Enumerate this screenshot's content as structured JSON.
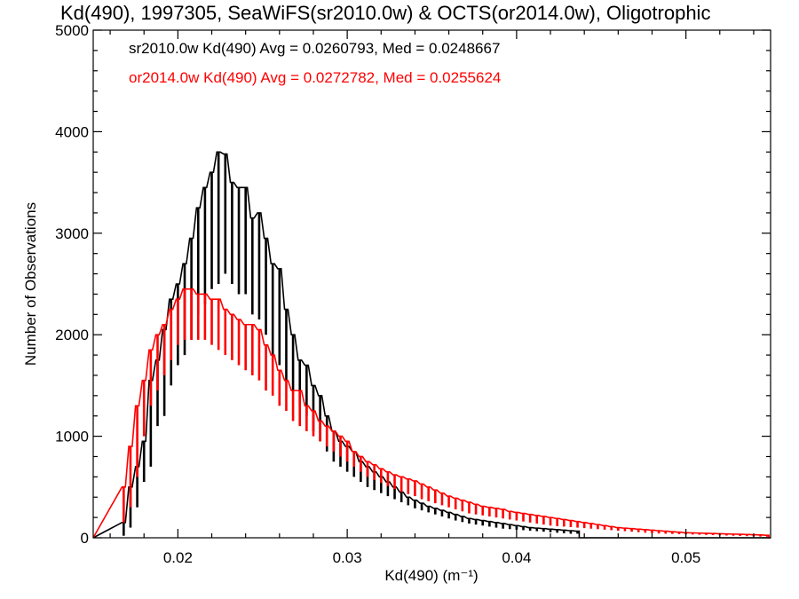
{
  "chart_data": {
    "type": "line",
    "title": "Kd(490), 1997305, SeaWiFS(sr2010.0w) & OCTS(or2014.0w), Oligotrophic",
    "xlabel": "Kd(490) (m⁻¹)",
    "ylabel": "Number of Observations",
    "xlim": [
      0.015,
      0.055
    ],
    "ylim": [
      0,
      5000
    ],
    "x_ticks": [
      0.02,
      0.03,
      0.04,
      0.05
    ],
    "x_tick_labels": [
      "0.02",
      "0.03",
      "0.04",
      "0.05"
    ],
    "y_ticks": [
      0,
      1000,
      2000,
      3000,
      4000,
      5000
    ],
    "y_tick_labels": [
      "0",
      "1000",
      "2000",
      "3000",
      "4000",
      "5000"
    ],
    "annotations": [
      "sr2010.0w Kd(490) Avg = 0.0260793, Med = 0.0248667",
      "or2014.0w Kd(490) Avg = 0.0272782, Med = 0.0255624"
    ],
    "grid": false,
    "bin_width": 0.0002,
    "series": [
      {
        "color": "#000000",
        "x": [
          0.0168,
          0.0172,
          0.0176,
          0.018,
          0.0184,
          0.0188,
          0.0192,
          0.0196,
          0.02,
          0.0204,
          0.0208,
          0.0212,
          0.0216,
          0.022,
          0.0224,
          0.0228,
          0.0232,
          0.0236,
          0.024,
          0.0244,
          0.0248,
          0.0252,
          0.0256,
          0.026,
          0.0264,
          0.0268,
          0.0272,
          0.0276,
          0.028,
          0.0284,
          0.0288,
          0.0292,
          0.0296,
          0.03,
          0.0304,
          0.0308,
          0.0312,
          0.0316,
          0.032,
          0.0324,
          0.0328,
          0.0332,
          0.0336,
          0.034,
          0.0344,
          0.0348,
          0.0352,
          0.0356,
          0.036,
          0.0364,
          0.0368,
          0.0372,
          0.0376,
          0.038,
          0.0384,
          0.0388,
          0.0392,
          0.0396,
          0.04,
          0.0404,
          0.0408,
          0.0412,
          0.0416,
          0.042,
          0.0424,
          0.0428,
          0.0432,
          0.0436
        ],
        "peaks": [
          150,
          500,
          700,
          950,
          1550,
          1750,
          2050,
          2350,
          2500,
          2700,
          2950,
          3250,
          3450,
          3600,
          3800,
          3780,
          3500,
          3450,
          3450,
          3150,
          3200,
          2950,
          2700,
          2650,
          2250,
          2000,
          1750,
          1700,
          1500,
          1400,
          1200,
          1050,
          950,
          900,
          850,
          750,
          700,
          650,
          600,
          550,
          500,
          450,
          400,
          370,
          340,
          310,
          290,
          270,
          250,
          230,
          210,
          190,
          180,
          170,
          160,
          150,
          140,
          130,
          120,
          110,
          100,
          95,
          90,
          85,
          80,
          75,
          70,
          65
        ],
        "troughs": [
          20,
          100,
          300,
          550,
          700,
          1100,
          1200,
          1500,
          1700,
          1800,
          1950,
          2200,
          2300,
          2450,
          2500,
          2600,
          2500,
          2400,
          2400,
          2200,
          2150,
          2000,
          1800,
          1700,
          1550,
          1450,
          1300,
          1200,
          1050,
          950,
          850,
          750,
          700,
          650,
          600,
          550,
          500,
          470,
          440,
          410,
          380,
          350,
          320,
          290,
          270,
          250,
          230,
          210,
          190,
          170,
          155,
          140,
          130,
          120,
          110,
          100,
          90,
          85,
          80,
          75,
          70,
          65,
          60,
          55,
          50,
          45,
          40,
          40
        ]
      },
      {
        "color": "#ff0000",
        "x": [
          0.0168,
          0.0172,
          0.0176,
          0.018,
          0.0184,
          0.0188,
          0.0192,
          0.0196,
          0.02,
          0.0204,
          0.0208,
          0.0212,
          0.0216,
          0.022,
          0.0224,
          0.0228,
          0.0232,
          0.0236,
          0.024,
          0.0244,
          0.0248,
          0.0252,
          0.0256,
          0.026,
          0.0264,
          0.0268,
          0.0272,
          0.0276,
          0.028,
          0.0284,
          0.0288,
          0.0292,
          0.0296,
          0.03,
          0.0304,
          0.0308,
          0.0312,
          0.0316,
          0.032,
          0.0324,
          0.0328,
          0.0332,
          0.0336,
          0.034,
          0.0344,
          0.0348,
          0.0352,
          0.0356,
          0.036,
          0.0364,
          0.0368,
          0.0372,
          0.0376,
          0.038,
          0.0384,
          0.0388,
          0.0392,
          0.0396,
          0.04,
          0.0404,
          0.0408,
          0.0412,
          0.0416,
          0.042,
          0.0424,
          0.0428,
          0.0432,
          0.0436,
          0.044,
          0.0444,
          0.0448,
          0.0452,
          0.0456,
          0.046,
          0.0464,
          0.0468,
          0.0472,
          0.0476,
          0.048,
          0.0484,
          0.0488,
          0.0492,
          0.0496,
          0.05,
          0.0504,
          0.0508,
          0.0512,
          0.0516,
          0.052,
          0.0524,
          0.0528,
          0.0532,
          0.0536,
          0.054,
          0.0544,
          0.0548
        ],
        "peaks": [
          500,
          900,
          1300,
          1550,
          1850,
          2000,
          2100,
          2250,
          2350,
          2450,
          2450,
          2400,
          2400,
          2350,
          2350,
          2250,
          2200,
          2150,
          2100,
          2100,
          2050,
          1900,
          1800,
          1650,
          1550,
          1450,
          1450,
          1300,
          1250,
          1150,
          1100,
          1050,
          1000,
          950,
          850,
          800,
          750,
          720,
          680,
          650,
          620,
          600,
          580,
          560,
          530,
          500,
          470,
          440,
          410,
          390,
          370,
          350,
          330,
          310,
          300,
          290,
          280,
          260,
          250,
          240,
          230,
          220,
          210,
          200,
          190,
          180,
          170,
          160,
          150,
          140,
          130,
          120,
          110,
          100,
          95,
          90,
          85,
          80,
          75,
          70,
          65,
          60,
          55,
          50,
          48,
          46,
          44,
          42,
          40,
          38,
          36,
          34,
          32,
          30,
          28,
          25
        ],
        "troughs": [
          150,
          300,
          600,
          1000,
          1300,
          1450,
          1600,
          1750,
          1900,
          1950,
          1950,
          1950,
          1950,
          1900,
          1850,
          1800,
          1750,
          1700,
          1650,
          1600,
          1550,
          1450,
          1400,
          1300,
          1250,
          1150,
          1100,
          1050,
          1000,
          950,
          900,
          850,
          800,
          750,
          700,
          650,
          600,
          570,
          540,
          510,
          480,
          450,
          430,
          410,
          380,
          360,
          340,
          320,
          300,
          280,
          260,
          240,
          230,
          220,
          210,
          200,
          190,
          180,
          170,
          160,
          150,
          140,
          130,
          120,
          115,
          110,
          105,
          100,
          95,
          90,
          85,
          80,
          75,
          70,
          65,
          60,
          55,
          50,
          45,
          42,
          40,
          38,
          36,
          34,
          32,
          30,
          28,
          26,
          24,
          22,
          20,
          18,
          16,
          14,
          12,
          10
        ]
      }
    ]
  }
}
